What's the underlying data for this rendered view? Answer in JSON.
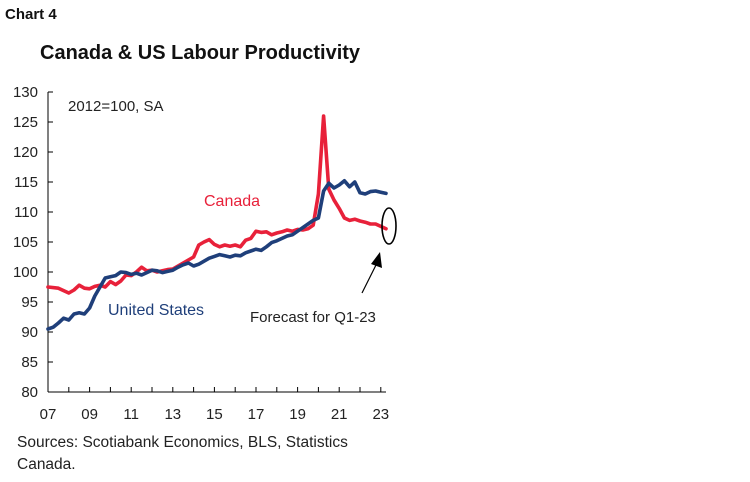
{
  "chart_label": "Chart 4",
  "source": "Sources: Scotiabank Economics, BLS, Statistics Canada.",
  "chart_data": {
    "type": "line",
    "title": "Canada & US Labour Productivity",
    "xlabel": "",
    "ylabel": "",
    "xlim": [
      2007,
      2023.25
    ],
    "ylim": [
      80,
      130
    ],
    "yticks": [
      80,
      85,
      90,
      95,
      100,
      105,
      110,
      115,
      120,
      125,
      130
    ],
    "xticks": [
      {
        "value": 2007,
        "label": "07"
      },
      {
        "value": 2009,
        "label": "09"
      },
      {
        "value": 2011,
        "label": "11"
      },
      {
        "value": 2013,
        "label": "13"
      },
      {
        "value": 2015,
        "label": "15"
      },
      {
        "value": 2017,
        "label": "17"
      },
      {
        "value": 2019,
        "label": "19"
      },
      {
        "value": 2021,
        "label": "21"
      },
      {
        "value": 2023,
        "label": "23"
      }
    ],
    "grid": false,
    "annotations": {
      "note": "2012=100, SA",
      "forecast": "Forecast for Q1-23"
    },
    "series": [
      {
        "name": "Canada",
        "color": "#e8213a",
        "x": [
          2007.0,
          2007.5,
          2008.0,
          2008.25,
          2008.5,
          2008.75,
          2009.0,
          2009.25,
          2009.5,
          2009.75,
          2010.0,
          2010.25,
          2010.5,
          2010.75,
          2011.0,
          2011.25,
          2011.5,
          2011.75,
          2012.0,
          2012.25,
          2012.5,
          2012.75,
          2013.0,
          2013.5,
          2014.0,
          2014.25,
          2014.5,
          2014.75,
          2015.0,
          2015.25,
          2015.5,
          2015.75,
          2016.0,
          2016.25,
          2016.5,
          2016.75,
          2017.0,
          2017.25,
          2017.5,
          2017.75,
          2018.0,
          2018.25,
          2018.5,
          2018.75,
          2019.0,
          2019.25,
          2019.5,
          2019.75,
          2020.0,
          2020.25,
          2020.5,
          2020.75,
          2021.0,
          2021.25,
          2021.5,
          2021.75,
          2022.0,
          2022.25,
          2022.5,
          2022.75,
          2023.0,
          2023.25
        ],
        "values": [
          97.5,
          97.3,
          96.5,
          97.0,
          97.8,
          97.3,
          97.2,
          97.6,
          97.8,
          97.5,
          98.4,
          97.9,
          98.5,
          99.5,
          99.4,
          100.0,
          100.8,
          100.2,
          100.3,
          100.0,
          100.2,
          100.4,
          100.5,
          101.5,
          102.5,
          104.5,
          105.0,
          105.4,
          104.6,
          104.2,
          104.5,
          104.3,
          104.5,
          104.2,
          105.3,
          105.6,
          106.8,
          106.6,
          106.7,
          106.2,
          106.5,
          106.7,
          107.0,
          106.8,
          107.1,
          107.0,
          107.2,
          107.8,
          113.0,
          126.0,
          113.8,
          112.0,
          110.6,
          109.0,
          108.6,
          108.8,
          108.5,
          108.3,
          108.0,
          108.0,
          107.6,
          107.2
        ]
      },
      {
        "name": "United States",
        "color": "#1f3f7a",
        "x": [
          2007.0,
          2007.25,
          2007.5,
          2007.75,
          2008.0,
          2008.25,
          2008.5,
          2008.75,
          2009.0,
          2009.25,
          2009.5,
          2009.75,
          2010.0,
          2010.25,
          2010.5,
          2010.75,
          2011.0,
          2011.25,
          2011.5,
          2011.75,
          2012.0,
          2012.25,
          2012.5,
          2012.75,
          2013.0,
          2013.25,
          2013.5,
          2013.75,
          2014.0,
          2014.25,
          2014.5,
          2014.75,
          2015.0,
          2015.25,
          2015.5,
          2015.75,
          2016.0,
          2016.25,
          2016.5,
          2016.75,
          2017.0,
          2017.25,
          2017.5,
          2017.75,
          2018.0,
          2018.25,
          2018.5,
          2018.75,
          2019.0,
          2019.25,
          2019.5,
          2019.75,
          2020.0,
          2020.25,
          2020.5,
          2020.75,
          2021.0,
          2021.25,
          2021.5,
          2021.75,
          2022.0,
          2022.25,
          2022.5,
          2022.75,
          2023.0,
          2023.25
        ],
        "values": [
          90.5,
          90.8,
          91.5,
          92.3,
          92.0,
          93.0,
          93.2,
          93.0,
          94.0,
          96.0,
          97.5,
          99.0,
          99.2,
          99.4,
          100.0,
          99.9,
          99.6,
          99.8,
          99.5,
          99.9,
          100.3,
          100.2,
          99.9,
          100.1,
          100.3,
          100.8,
          101.2,
          101.5,
          101.0,
          101.3,
          101.8,
          102.3,
          102.6,
          102.9,
          102.7,
          102.5,
          102.8,
          102.7,
          103.2,
          103.5,
          103.8,
          103.6,
          104.2,
          104.9,
          105.2,
          105.6,
          106.0,
          106.2,
          106.8,
          107.4,
          108.0,
          108.6,
          109.0,
          113.5,
          114.8,
          114.0,
          114.5,
          115.2,
          114.2,
          115.0,
          113.2,
          113.0,
          113.4,
          113.5,
          113.3,
          113.1
        ]
      }
    ]
  }
}
